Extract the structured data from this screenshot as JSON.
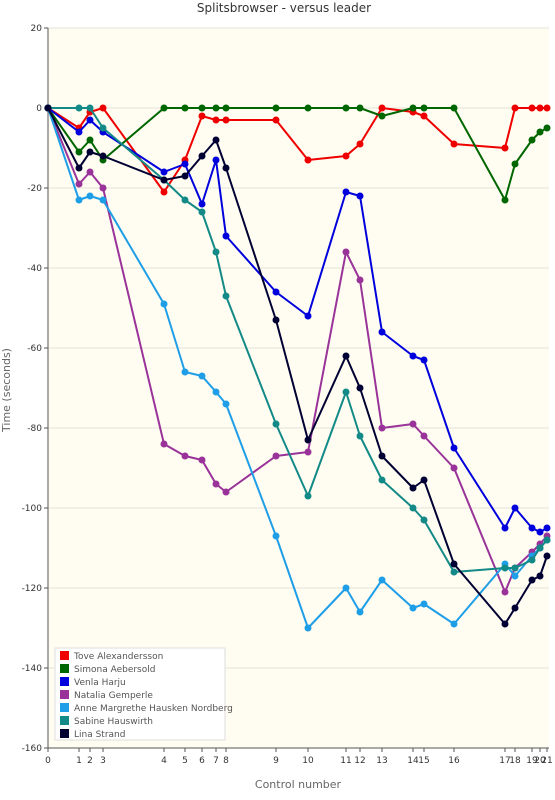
{
  "chart_data": {
    "type": "line",
    "title": "Splitsbrowser - versus leader",
    "xlabel": "Control number",
    "ylabel": "Time (seconds)",
    "ylim": [
      -160,
      20
    ],
    "yticks": [
      20,
      0,
      -20,
      -40,
      -60,
      -80,
      -100,
      -120,
      -140,
      -160
    ],
    "x": [
      0,
      1,
      2,
      3,
      4,
      5,
      6,
      7,
      8,
      9,
      10,
      11,
      12,
      13,
      14,
      15,
      16,
      17,
      18,
      19,
      20,
      21
    ],
    "xticks": [
      "0",
      "1",
      "2",
      "3",
      "4",
      "5",
      "6",
      "7",
      "8",
      "9",
      "10",
      "11",
      "12",
      "13",
      "14",
      "15",
      "16",
      "17",
      "18",
      "19",
      "20",
      "21"
    ],
    "grid": "horizontal",
    "legend_position": "bottom-left",
    "series": [
      {
        "name": "Tove Alexandersson",
        "color": "#ee0000",
        "values": [
          0,
          -5,
          -1,
          0,
          -21,
          -13,
          -2,
          -3,
          -3,
          -3,
          -13,
          -12,
          -9,
          0,
          -1,
          -2,
          -9,
          -10,
          0,
          0,
          0,
          0
        ]
      },
      {
        "name": "Simona Aebersold",
        "color": "#006600",
        "values": [
          0,
          -11,
          -8,
          -13,
          0,
          0,
          0,
          0,
          0,
          0,
          0,
          0,
          0,
          -2,
          0,
          0,
          0,
          -23,
          -14,
          -8,
          -6,
          -5
        ]
      },
      {
        "name": "Venla Harju",
        "color": "#0000dd",
        "values": [
          0,
          -6,
          -3,
          -6,
          -16,
          -14,
          -24,
          -13,
          -32,
          -46,
          -52,
          -21,
          -22,
          -56,
          -62,
          -63,
          -85,
          -105,
          -100,
          -105,
          -106,
          -105
        ]
      },
      {
        "name": "Natalia Gemperle",
        "color": "#993399",
        "values": [
          0,
          -19,
          -16,
          -20,
          -84,
          -87,
          -88,
          -94,
          -96,
          -87,
          -86,
          -36,
          -43,
          -80,
          -79,
          -82,
          -90,
          -121,
          -115,
          -111,
          -109,
          -107
        ]
      },
      {
        "name": "Anne Margrethe Hausken Nordberg",
        "color": "#1f9ee8",
        "values": [
          0,
          -23,
          -22,
          -23,
          -49,
          -66,
          -67,
          -71,
          -74,
          -107,
          -130,
          -120,
          -126,
          -118,
          -125,
          -124,
          -129,
          -114,
          -117,
          -112,
          -110,
          -108
        ]
      },
      {
        "name": "Sabine Hauswirth",
        "color": "#138a87",
        "values": [
          0,
          0,
          0,
          -5,
          -18,
          -23,
          -26,
          -36,
          -47,
          -79,
          -97,
          -71,
          -82,
          -93,
          -100,
          -103,
          -116,
          -115,
          -115,
          -113,
          -110,
          -108
        ]
      },
      {
        "name": "Lina Strand",
        "color": "#000033",
        "values": [
          0,
          -15,
          -11,
          -12,
          -18,
          -17,
          -12,
          -8,
          -15,
          -53,
          -83,
          -62,
          -70,
          -87,
          -95,
          -93,
          -114,
          -129,
          -125,
          -118,
          -117,
          -112
        ]
      }
    ]
  },
  "colors": {
    "plot_background": "#fffdf1",
    "axis": "#555555",
    "grid": "#e6e4d8"
  }
}
